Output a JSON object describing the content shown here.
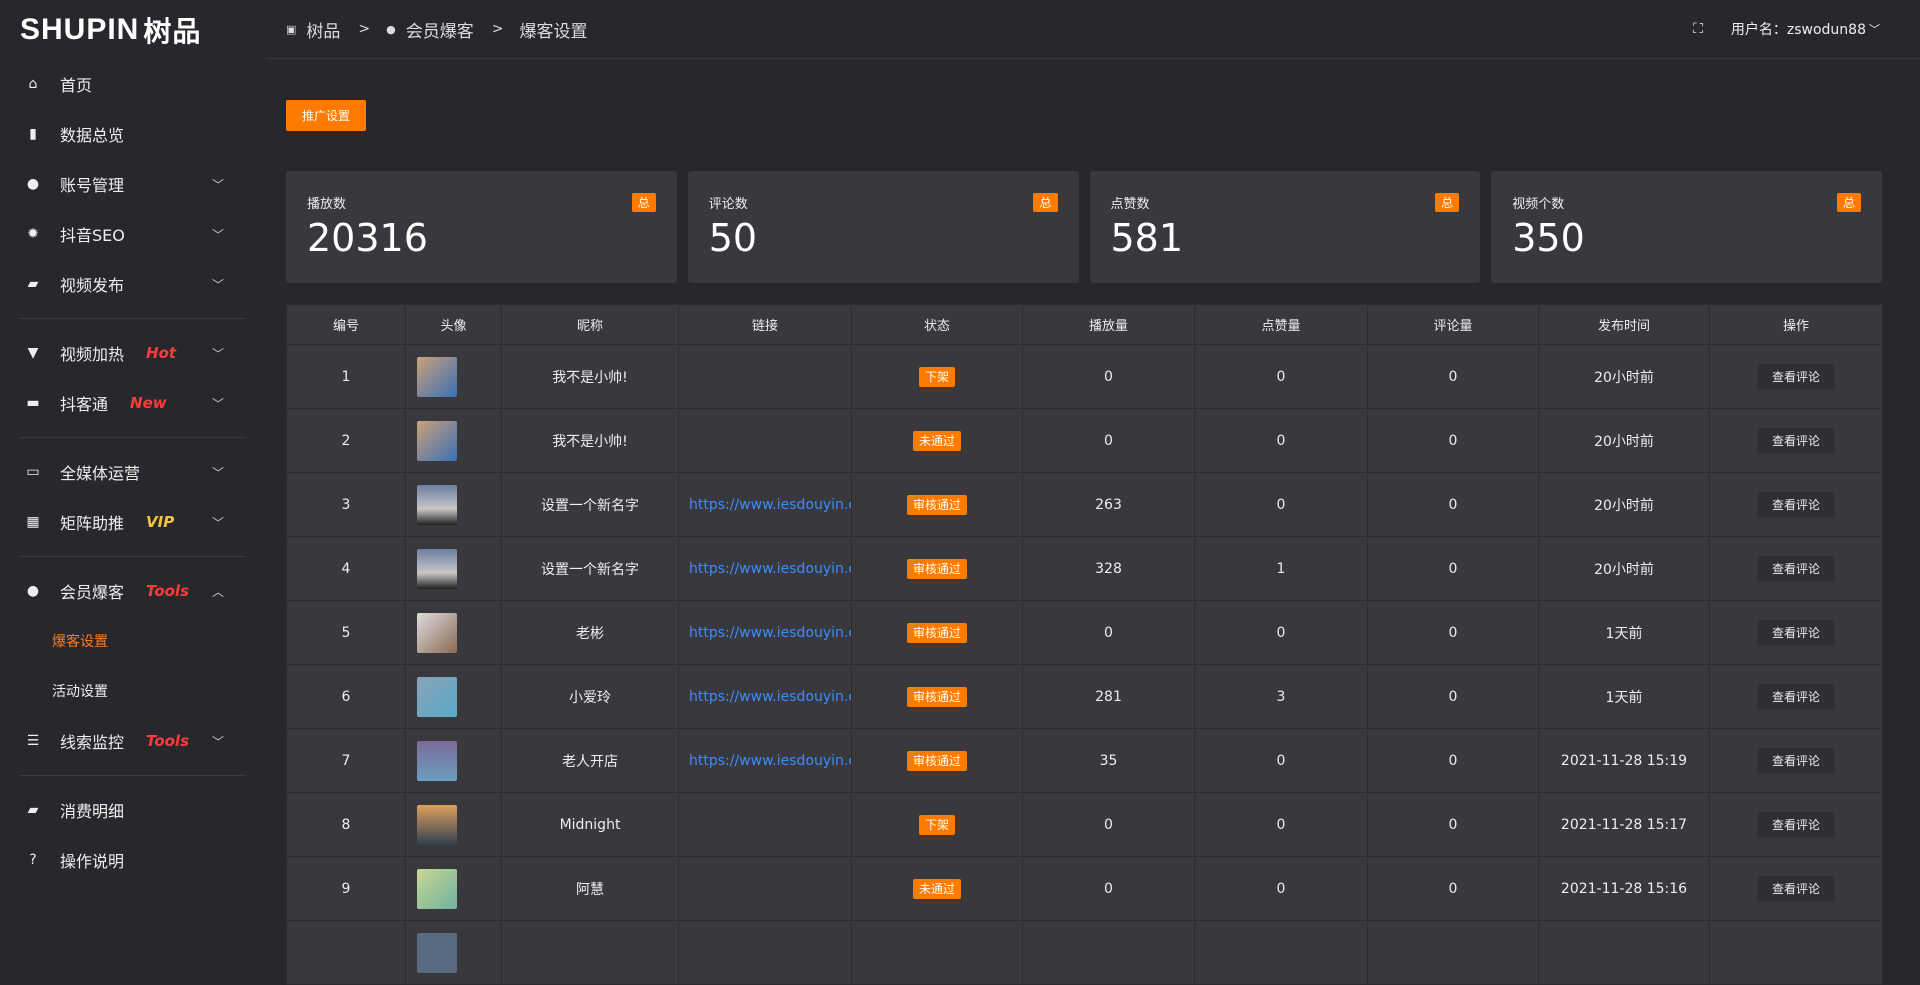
{
  "logo": {
    "text": "SHUPIN",
    "cn": "树品"
  },
  "sidebar": {
    "items": [
      {
        "label": "首页",
        "icon": "home-icon",
        "glyph": "⌂"
      },
      {
        "label": "数据总览",
        "icon": "bar-chart-icon",
        "glyph": "▮"
      },
      {
        "label": "账号管理",
        "icon": "user-icon",
        "glyph": "●",
        "chev": "﹀"
      },
      {
        "label": "抖音SEO",
        "icon": "gear-icon",
        "glyph": "✹",
        "chev": "﹀"
      },
      {
        "label": "视频发布",
        "icon": "camera-icon",
        "glyph": "▰",
        "chev": "﹀"
      },
      {
        "label": "视频加热",
        "icon": "projector-icon",
        "glyph": "▼",
        "tag": "Hot",
        "chev": "﹀"
      },
      {
        "label": "抖客通",
        "icon": "chat-icon",
        "glyph": "▬",
        "tag": "New",
        "chev": "﹀"
      },
      {
        "label": "全媒体运营",
        "icon": "monitor-icon",
        "glyph": "▭",
        "chev": "﹀"
      },
      {
        "label": "矩阵助推",
        "icon": "grid-icon",
        "glyph": "▦",
        "tag": "VIP",
        "chev": "﹀"
      },
      {
        "label": "会员爆客",
        "icon": "user-icon",
        "glyph": "●",
        "tag": "Tools",
        "chev": "︿",
        "subs": [
          "爆客设置",
          "活动设置"
        ]
      },
      {
        "label": "线索监控",
        "icon": "sliders-icon",
        "glyph": "☰",
        "tag": "Tools",
        "chev": "﹀"
      },
      {
        "label": "消费明细",
        "icon": "wallet-icon",
        "glyph": "▰"
      },
      {
        "label": "操作说明",
        "icon": "question-icon",
        "glyph": "?"
      }
    ]
  },
  "colors": {
    "accent": "#ff7b00",
    "hot": "#ff3b3b",
    "vip": "#f5c242",
    "link": "#3b8cff"
  },
  "header": {
    "breadcrumb": [
      "树品",
      "会员爆客",
      "爆客设置"
    ],
    "sep": ">",
    "user": "用户名：zswodun88"
  },
  "main": {
    "promo_button": "推广设置",
    "cards": [
      {
        "label": "播放数",
        "value": "20316",
        "badge": "总"
      },
      {
        "label": "评论数",
        "value": "50",
        "badge": "总"
      },
      {
        "label": "点赞数",
        "value": "581",
        "badge": "总"
      },
      {
        "label": "视频个数",
        "value": "350",
        "badge": "总"
      }
    ],
    "table": {
      "columns": [
        "编号",
        "头像",
        "昵称",
        "链接",
        "状态",
        "播放量",
        "点赞量",
        "评论量",
        "发布时间",
        "操作"
      ],
      "rows": [
        [
          "1",
          "",
          "我不是小帅!",
          "",
          "下架",
          "0",
          "0",
          "0",
          "20小时前",
          "查看评论"
        ],
        [
          "2",
          "",
          "我不是小帅!",
          "",
          "未通过",
          "0",
          "0",
          "0",
          "20小时前",
          "查看评论"
        ],
        [
          "3",
          "",
          "设置一个新名字",
          "https://www.iesdouyin.c",
          "审核通过",
          "263",
          "0",
          "0",
          "20小时前",
          "查看评论"
        ],
        [
          "4",
          "",
          "设置一个新名字",
          "https://www.iesdouyin.c",
          "审核通过",
          "328",
          "1",
          "0",
          "20小时前",
          "查看评论"
        ],
        [
          "5",
          "",
          "老彬",
          "https://www.iesdouyin.c",
          "审核通过",
          "0",
          "0",
          "0",
          "1天前",
          "查看评论"
        ],
        [
          "6",
          "",
          "小爱玲",
          "https://www.iesdouyin.c",
          "审核通过",
          "281",
          "3",
          "0",
          "1天前",
          "查看评论"
        ],
        [
          "7",
          "",
          "老人开店",
          "https://www.iesdouyin.c",
          "审核通过",
          "35",
          "0",
          "0",
          "2021-11-28 15:19",
          "查看评论"
        ],
        [
          "8",
          "",
          "Midnight",
          "",
          "下架",
          "0",
          "0",
          "0",
          "2021-11-28 15:17",
          "查看评论"
        ],
        [
          "9",
          "",
          "阿慧",
          "",
          "未通过",
          "0",
          "0",
          "0",
          "2021-11-28 15:16",
          "查看评论"
        ]
      ]
    }
  }
}
